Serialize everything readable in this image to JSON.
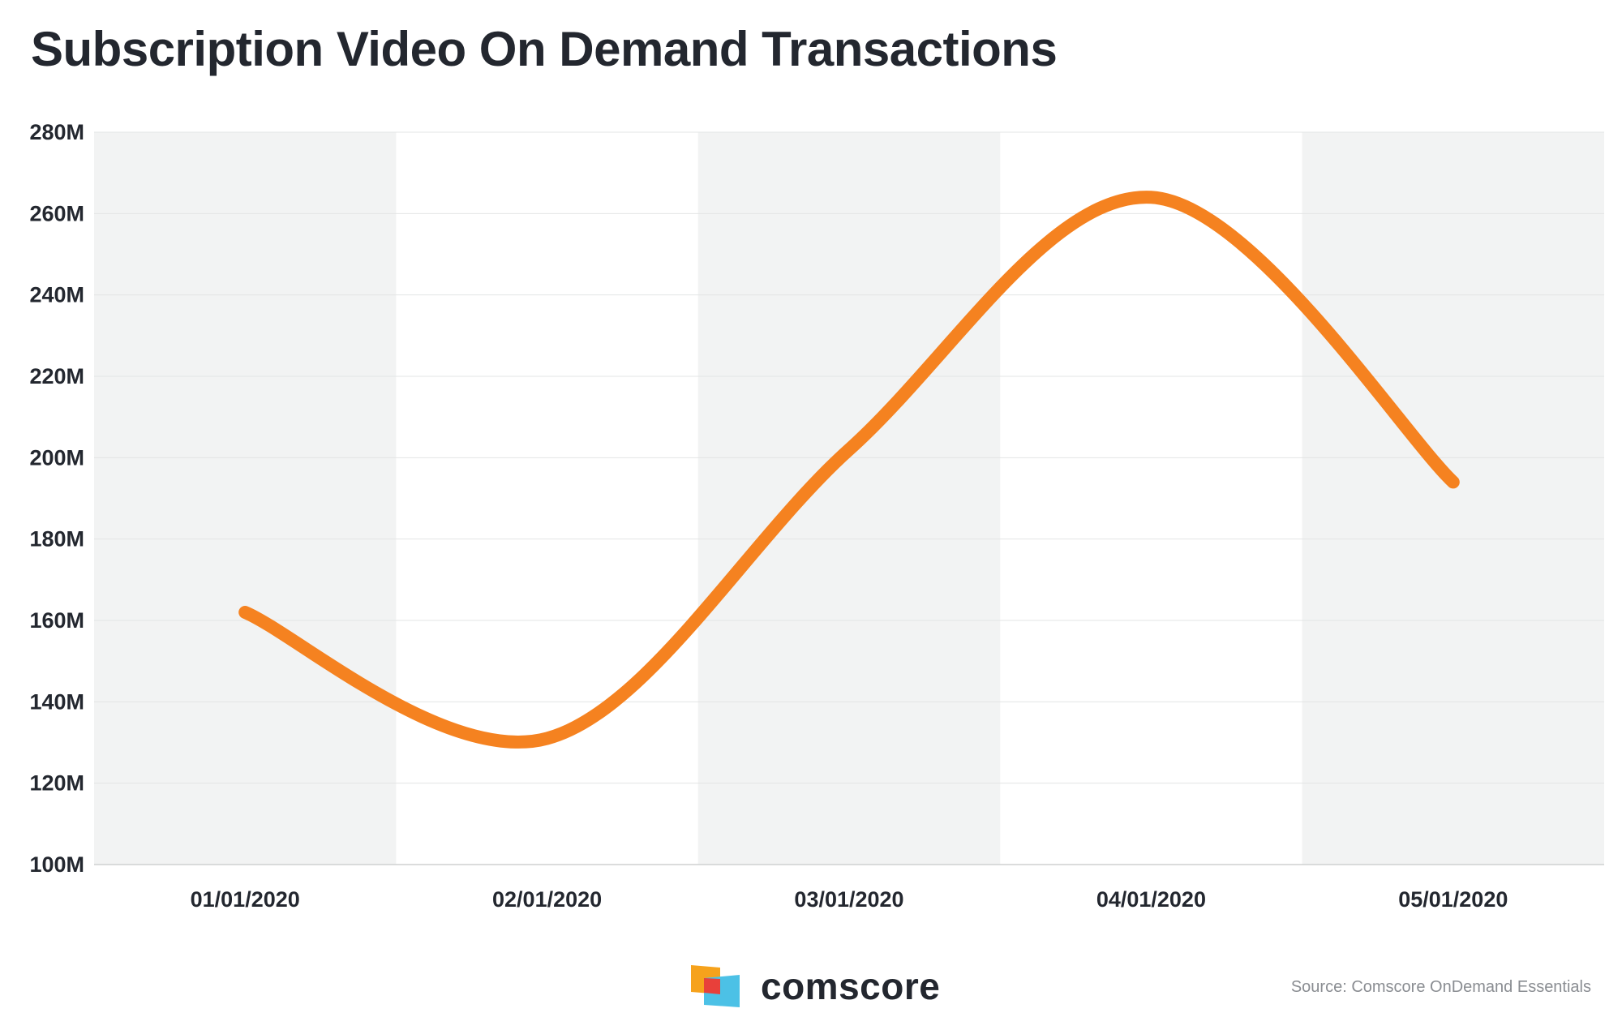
{
  "title": "Subscription Video On Demand Transactions",
  "source": "Source: Comscore OnDemand Essentials",
  "logo": {
    "text": "comscore",
    "colors": [
      "#f6a21c",
      "#e8403a",
      "#4cc1e6"
    ]
  },
  "colors": {
    "line": "#f58220",
    "band": "#f2f3f3",
    "grid": "#e3e4e4",
    "text": "#23272f"
  },
  "chart_data": {
    "type": "line",
    "title": "Subscription Video On Demand Transactions",
    "xlabel": "",
    "ylabel": "",
    "ylim": [
      100,
      280
    ],
    "y_ticks": [
      100,
      120,
      140,
      160,
      180,
      200,
      220,
      240,
      260,
      280
    ],
    "y_tick_labels": [
      "100M",
      "120M",
      "140M",
      "160M",
      "180M",
      "200M",
      "220M",
      "240M",
      "260M",
      "280M"
    ],
    "categories": [
      "01/01/2020",
      "02/01/2020",
      "03/01/2020",
      "04/01/2020",
      "05/01/2020"
    ],
    "values": [
      162,
      131,
      202,
      264,
      194
    ],
    "grid": true,
    "alternating_bands": true
  }
}
